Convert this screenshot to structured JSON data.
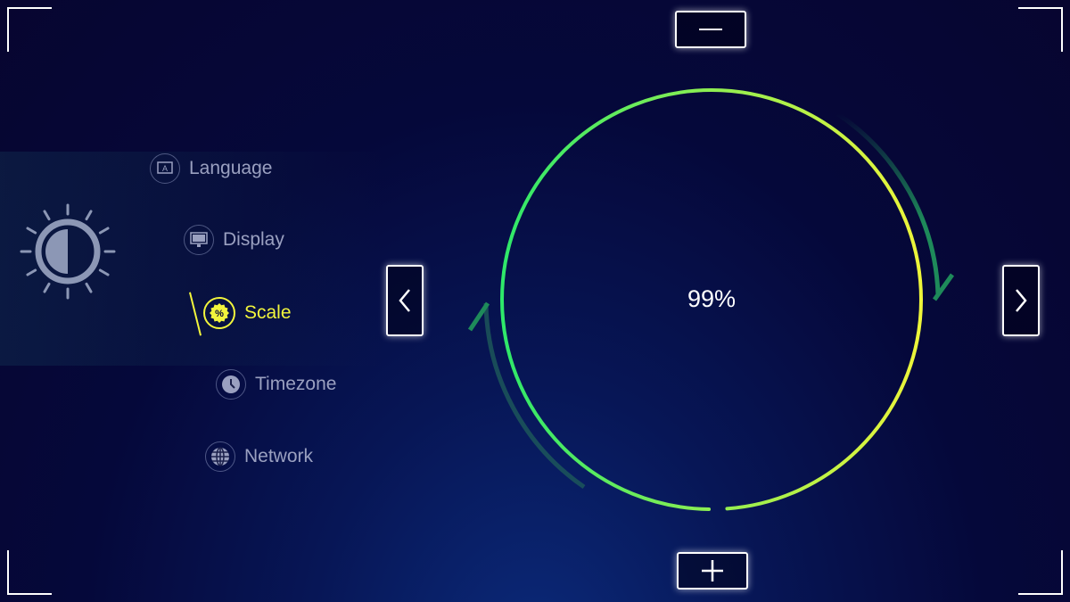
{
  "menu": {
    "items": [
      {
        "label": "Language",
        "icon": "language-icon",
        "active": false
      },
      {
        "label": "Display",
        "icon": "display-icon",
        "active": false
      },
      {
        "label": "Scale",
        "icon": "percent-badge-icon",
        "active": true
      },
      {
        "label": "Timezone",
        "icon": "clock-icon",
        "active": false
      },
      {
        "label": "Network",
        "icon": "globe-icon",
        "active": false
      }
    ]
  },
  "scale": {
    "value": 99,
    "value_label": "99%"
  },
  "colors": {
    "accent": "#f2f53c",
    "ring_top": "#eef53a",
    "ring_bottom": "#2ee86a",
    "text_muted": "#9aa0c0"
  }
}
